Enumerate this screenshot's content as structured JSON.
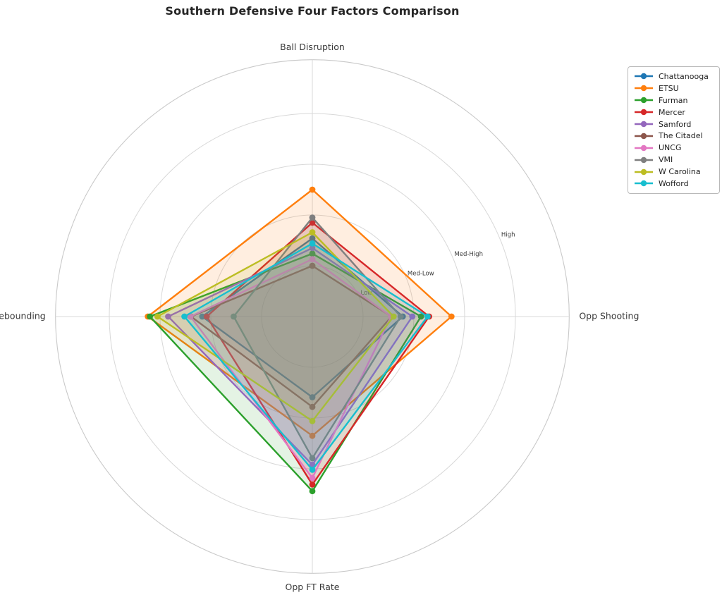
{
  "chart": {
    "title": "Southern Defensive Four Factors Comparison"
  },
  "chart_data": {
    "type": "radar",
    "axes": [
      "Ball Disruption",
      "Opp Shooting",
      "Opp FT Rate",
      "Def Rebounding"
    ],
    "tick_labels": [
      "Low",
      "Med-Low",
      "Med-High",
      "High"
    ],
    "tick_values": [
      1,
      2,
      3,
      4
    ],
    "rmax": 5.06,
    "rlabel_angle_deg": 22.5,
    "grid": true,
    "legend_position": "upper right",
    "fill_alpha": 0.13,
    "grid_color": "#d8d8d8",
    "spine_color": "#c9c9c9",
    "series": [
      {
        "name": "Chattanooga",
        "color": "#1f77b4",
        "values": [
          1.54,
          1.78,
          1.59,
          2.17
        ]
      },
      {
        "name": "ETSU",
        "color": "#ff7f0e",
        "values": [
          2.5,
          2.74,
          2.35,
          3.24
        ]
      },
      {
        "name": "Furman",
        "color": "#2ca02c",
        "values": [
          1.24,
          2.14,
          3.44,
          3.2
        ]
      },
      {
        "name": "Mercer",
        "color": "#d62728",
        "values": [
          1.85,
          2.3,
          3.31,
          2.08
        ]
      },
      {
        "name": "Samford",
        "color": "#9467bd",
        "values": [
          1.35,
          1.97,
          2.92,
          2.84
        ]
      },
      {
        "name": "The Citadel",
        "color": "#8c564b",
        "values": [
          1.0,
          1.56,
          1.78,
          2.39
        ]
      },
      {
        "name": "UNCG",
        "color": "#e377c2",
        "values": [
          1.13,
          1.55,
          3.18,
          2.4
        ]
      },
      {
        "name": "VMI",
        "color": "#7f7f7f",
        "values": [
          1.95,
          1.74,
          2.79,
          1.55
        ]
      },
      {
        "name": "W Carolina",
        "color": "#bcbd22",
        "values": [
          1.66,
          1.6,
          2.06,
          3.05
        ]
      },
      {
        "name": "Wofford",
        "color": "#17becf",
        "values": [
          1.44,
          2.27,
          3.02,
          2.52
        ]
      }
    ]
  }
}
